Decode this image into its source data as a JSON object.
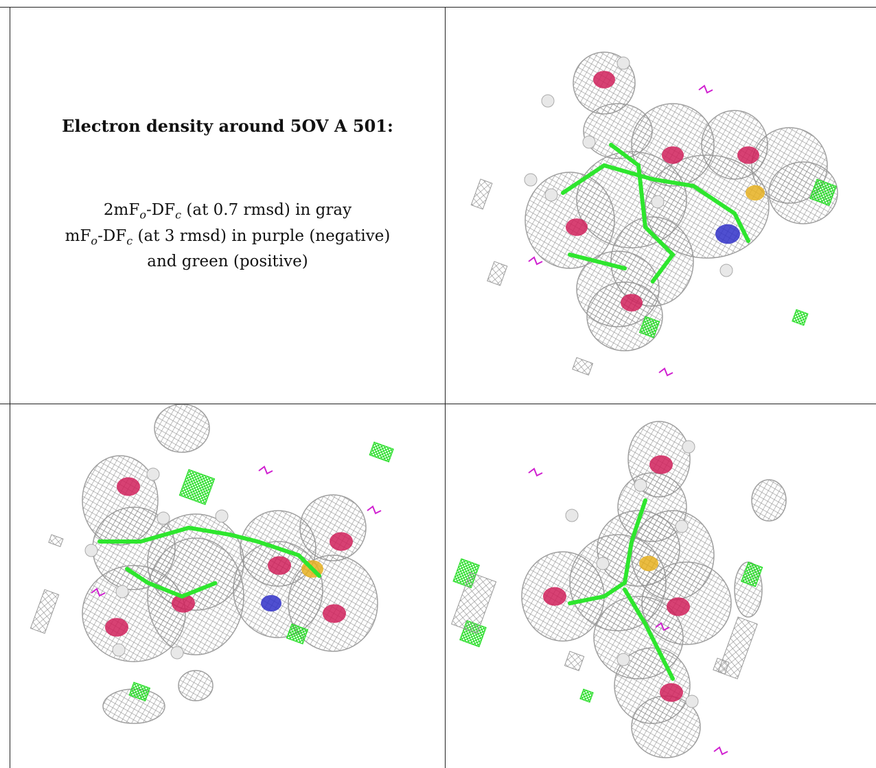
{
  "caption": {
    "title": "Electron density around 5OV A 501:",
    "line1": "2mF<sub>o</sub>-DF<sub>c</sub> (at 0.7 rmsd) in gray",
    "line2": "mF<sub>o</sub>-DF<sub>c</sub> (at 3 rmsd) in purple (negative)",
    "line3": "and green (positive)"
  },
  "colors": {
    "mesh_gray": "#8c8c8c",
    "oxygen_red": "#d0205a",
    "carbon_green": "#2ee62e",
    "nitrogen_blue": "#3030c8",
    "sulfur_yellow": "#e6b020",
    "negative_purple": "#d020d0",
    "positive_green": "#22dd22",
    "hydrogen_white": "#e8e8e8"
  },
  "panels": [
    {
      "name": "view-1",
      "icon": "electron-density-mesh-icon"
    },
    {
      "name": "view-2",
      "icon": "electron-density-mesh-icon"
    },
    {
      "name": "view-3",
      "icon": "electron-density-mesh-icon"
    }
  ]
}
